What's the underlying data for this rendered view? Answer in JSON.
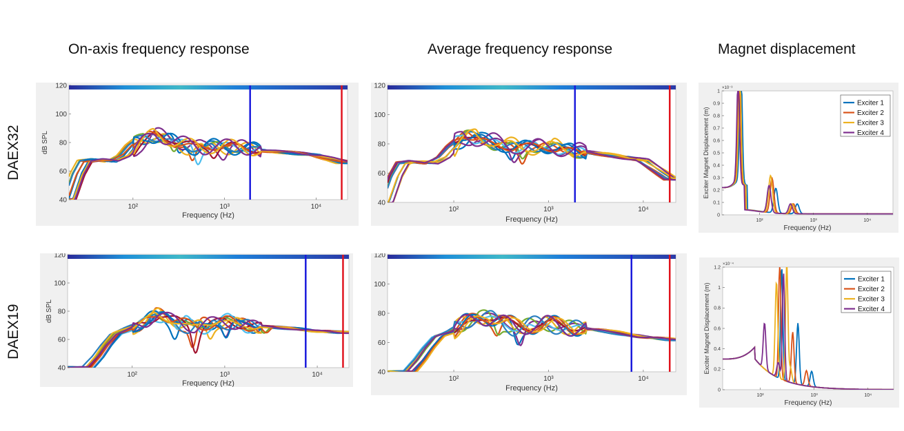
{
  "column_titles": [
    "On-axis frequency response",
    "Average frequency response",
    "Magnet displacement"
  ],
  "row_labels": [
    "DAEX32",
    "DAEX19"
  ],
  "colors": {
    "series": [
      "#0072bd",
      "#d95319",
      "#edb120",
      "#7e2f8e",
      "#77ac30",
      "#4dbeee",
      "#a2142f",
      "#2a7fbf"
    ],
    "blue_marker": "#1a1adc",
    "red_marker": "#e0141e",
    "panel_bg": "#f0f0f0"
  },
  "chart_data": [
    {
      "id": "daex32-onaxis",
      "type": "line",
      "row": "DAEX32",
      "column": "On-axis frequency response",
      "xlabel": "Frequency (Hz)",
      "ylabel": "dB SPL",
      "xscale": "log",
      "xlim": [
        20,
        22000
      ],
      "ylim": [
        40,
        120
      ],
      "yticks": [
        40,
        60,
        80,
        100,
        120
      ],
      "xticks": [
        100,
        1000,
        10000
      ],
      "xtick_labels": [
        "10²",
        "10³",
        "10⁴"
      ],
      "markers": [
        {
          "x": 1900,
          "color": "blue"
        },
        {
          "x": 19000,
          "color": "red"
        }
      ],
      "series_count": 12,
      "envelope_x": [
        20,
        25,
        30,
        40,
        60,
        80,
        100,
        150,
        200,
        300,
        400,
        500,
        700,
        1000,
        1500,
        2000,
        3000,
        5000,
        10000,
        20000
      ],
      "envelope_y": [
        40,
        58,
        67,
        68,
        67,
        71,
        78,
        86,
        83,
        80,
        78,
        76,
        77,
        78,
        76,
        75,
        74,
        73,
        71,
        66
      ],
      "dips": [
        {
          "x": 300,
          "y": 66
        },
        {
          "x": 480,
          "y": 58
        },
        {
          "x": 700,
          "y": 68
        },
        {
          "x": 900,
          "y": 70
        }
      ]
    },
    {
      "id": "daex32-average",
      "type": "line",
      "row": "DAEX32",
      "column": "Average frequency response",
      "xlabel": "Frequency (Hz)",
      "ylabel": "",
      "xscale": "log",
      "xlim": [
        20,
        22000
      ],
      "ylim": [
        40,
        120
      ],
      "yticks": [
        40,
        60,
        80,
        100,
        120
      ],
      "xticks": [
        100,
        1000,
        10000
      ],
      "xtick_labels": [
        "10²",
        "10³",
        "10⁴"
      ],
      "markers": [
        {
          "x": 1900,
          "color": "blue"
        },
        {
          "x": 19000,
          "color": "red"
        }
      ],
      "series_count": 12,
      "envelope_x": [
        20,
        25,
        30,
        40,
        60,
        80,
        100,
        150,
        200,
        300,
        400,
        500,
        700,
        1000,
        1500,
        2000,
        3000,
        5000,
        10000,
        20000
      ],
      "envelope_y": [
        40,
        58,
        67,
        68,
        67,
        71,
        78,
        87,
        83,
        80,
        79,
        77,
        78,
        79,
        76,
        75,
        74,
        72,
        69,
        56
      ],
      "dips": [
        {
          "x": 400,
          "y": 68
        },
        {
          "x": 560,
          "y": 61
        },
        {
          "x": 900,
          "y": 73
        }
      ]
    },
    {
      "id": "daex32-magnet",
      "type": "line",
      "row": "DAEX32",
      "column": "Magnet displacement",
      "xlabel": "Frequency (Hz)",
      "ylabel": "Exciter Magnet Displacement (m)",
      "xscale": "log",
      "xlim": [
        20,
        30000
      ],
      "ylim": [
        0,
        1.0
      ],
      "yscale_label": "×10⁻³",
      "yticks": [
        0,
        0.1,
        0.2,
        0.3,
        0.4,
        0.5,
        0.6,
        0.7,
        0.8,
        0.9,
        1
      ],
      "xticks": [
        100,
        1000,
        10000
      ],
      "xtick_labels": [
        "10²",
        "10³",
        "10⁴"
      ],
      "legend_position": "top-right",
      "legend": [
        "Exciter 1",
        "Exciter 2",
        "Exciter 3",
        "Exciter 4"
      ],
      "series": [
        {
          "name": "Exciter 1",
          "peak_f": 45,
          "peak_y": 0.95,
          "second_f": 200,
          "second_y": 0.2
        },
        {
          "name": "Exciter 2",
          "peak_f": 42,
          "peak_y": 0.85,
          "second_f": 170,
          "second_y": 0.28
        },
        {
          "name": "Exciter 3",
          "peak_f": 43,
          "peak_y": 0.9,
          "second_f": 160,
          "second_y": 0.3
        },
        {
          "name": "Exciter 4",
          "peak_f": 40,
          "peak_y": 0.8,
          "second_f": 150,
          "second_y": 0.22
        }
      ]
    },
    {
      "id": "daex19-onaxis",
      "type": "line",
      "row": "DAEX19",
      "column": "On-axis frequency response",
      "xlabel": "Frequency (Hz)",
      "ylabel": "dB SPL",
      "xscale": "log",
      "xlim": [
        20,
        22000
      ],
      "ylim": [
        40,
        120
      ],
      "yticks": [
        40,
        60,
        80,
        100,
        120
      ],
      "xticks": [
        100,
        1000,
        10000
      ],
      "xtick_labels": [
        "10²",
        "10³",
        "10⁴"
      ],
      "markers": [
        {
          "x": 7500,
          "color": "blue"
        },
        {
          "x": 19000,
          "color": "red"
        }
      ],
      "series_count": 12,
      "envelope_x": [
        35,
        45,
        55,
        70,
        100,
        150,
        200,
        300,
        400,
        500,
        700,
        1000,
        1500,
        2000,
        3000,
        5000,
        10000,
        20000
      ],
      "envelope_y": [
        40,
        48,
        56,
        64,
        68,
        72,
        78,
        74,
        70,
        68,
        72,
        73,
        70,
        70,
        69,
        68,
        66,
        65
      ],
      "dips": [
        {
          "x": 300,
          "y": 58
        },
        {
          "x": 480,
          "y": 42
        },
        {
          "x": 700,
          "y": 56
        },
        {
          "x": 1000,
          "y": 56
        },
        {
          "x": 2800,
          "y": 62
        }
      ]
    },
    {
      "id": "daex19-average",
      "type": "line",
      "row": "DAEX19",
      "column": "Average frequency response",
      "xlabel": "Frequency (Hz)",
      "ylabel": "",
      "xscale": "log",
      "xlim": [
        20,
        22000
      ],
      "ylim": [
        40,
        120
      ],
      "yticks": [
        40,
        60,
        80,
        100,
        120
      ],
      "xticks": [
        100,
        1000,
        10000
      ],
      "xtick_labels": [
        "10²",
        "10³",
        "10⁴"
      ],
      "markers": [
        {
          "x": 7500,
          "color": "blue"
        },
        {
          "x": 19000,
          "color": "red"
        }
      ],
      "series_count": 12,
      "envelope_x": [
        35,
        45,
        55,
        70,
        100,
        150,
        200,
        300,
        400,
        500,
        700,
        1000,
        1500,
        2000,
        3000,
        5000,
        10000,
        20000
      ],
      "envelope_y": [
        40,
        48,
        56,
        64,
        68,
        74,
        78,
        76,
        72,
        70,
        72,
        73,
        71,
        70,
        69,
        67,
        64,
        62
      ],
      "dips": [
        {
          "x": 500,
          "y": 51
        },
        {
          "x": 300,
          "y": 62
        },
        {
          "x": 800,
          "y": 66
        }
      ]
    },
    {
      "id": "daex19-magnet",
      "type": "line",
      "row": "DAEX19",
      "column": "Magnet displacement",
      "xlabel": "Frequency (Hz)",
      "ylabel": "Exciter Magnet Displacement (m)",
      "xscale": "log",
      "xlim": [
        20,
        30000
      ],
      "ylim": [
        0,
        1.2
      ],
      "yscale_label": "×10⁻⁴",
      "yticks": [
        0,
        0.2,
        0.4,
        0.6,
        0.8,
        1,
        1.2
      ],
      "xticks": [
        100,
        1000,
        10000
      ],
      "xtick_labels": [
        "10²",
        "10³",
        "10⁴"
      ],
      "legend_position": "top-right",
      "legend": [
        "Exciter 1",
        "Exciter 2",
        "Exciter 3",
        "Exciter 4"
      ],
      "series": [
        {
          "name": "Exciter 1",
          "peak_f": 250,
          "peak_y": 1.1,
          "second_f": 500,
          "second_y": 0.6
        },
        {
          "name": "Exciter 2",
          "peak_f": 230,
          "peak_y": 1.15,
          "second_f": 400,
          "second_y": 0.5
        },
        {
          "name": "Exciter 3",
          "peak_f": 310,
          "peak_y": 1.17,
          "second_f": 200,
          "second_y": 0.93
        },
        {
          "name": "Exciter 4",
          "peak_f": 270,
          "peak_y": 1.05,
          "second_f": 120,
          "second_y": 0.45
        }
      ]
    }
  ]
}
